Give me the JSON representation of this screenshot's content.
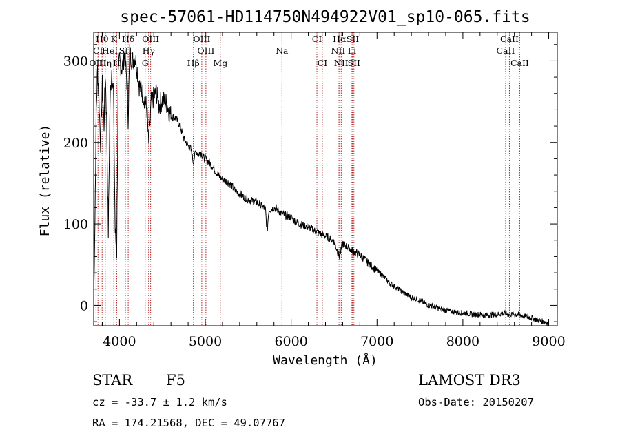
{
  "chart_data": {
    "type": "line",
    "title": "spec-57061-HD114750N494922V01_sp10-065.fits",
    "xlabel": "Wavelength (Å)",
    "ylabel": "Flux (relative)",
    "xlim": [
      3700,
      9100
    ],
    "ylim": [
      -25,
      335
    ],
    "xticks": [
      4000,
      5000,
      6000,
      7000,
      8000,
      9000
    ],
    "yticks": [
      0,
      100,
      200,
      300
    ],
    "series": [
      {
        "name": "flux",
        "points": [
          [
            3700,
            0
          ],
          [
            3715,
            110
          ],
          [
            3730,
            240
          ],
          [
            3745,
            290
          ],
          [
            3760,
            255
          ],
          [
            3780,
            200
          ],
          [
            3800,
            270
          ],
          [
            3820,
            220
          ],
          [
            3835,
            285
          ],
          [
            3850,
            230
          ],
          [
            3870,
            90
          ],
          [
            3890,
            250
          ],
          [
            3910,
            290
          ],
          [
            3930,
            262
          ],
          [
            3950,
            90
          ],
          [
            3968,
            65
          ],
          [
            3985,
            280
          ],
          [
            4000,
            300
          ],
          [
            4030,
            290
          ],
          [
            4060,
            310
          ],
          [
            4090,
            270
          ],
          [
            4101,
            230
          ],
          [
            4120,
            310
          ],
          [
            4150,
            300
          ],
          [
            4180,
            305
          ],
          [
            4200,
            295
          ],
          [
            4230,
            270
          ],
          [
            4260,
            262
          ],
          [
            4290,
            255
          ],
          [
            4320,
            240
          ],
          [
            4340,
            195
          ],
          [
            4370,
            250
          ],
          [
            4400,
            255
          ],
          [
            4430,
            262
          ],
          [
            4460,
            245
          ],
          [
            4500,
            252
          ],
          [
            4550,
            248
          ],
          [
            4600,
            232
          ],
          [
            4650,
            230
          ],
          [
            4700,
            222
          ],
          [
            4750,
            205
          ],
          [
            4800,
            196
          ],
          [
            4830,
            192
          ],
          [
            4861,
            176
          ],
          [
            4890,
            190
          ],
          [
            4920,
            185
          ],
          [
            4950,
            188
          ],
          [
            4980,
            181
          ],
          [
            5000,
            180
          ],
          [
            5050,
            175
          ],
          [
            5100,
            168
          ],
          [
            5150,
            160
          ],
          [
            5172,
            157
          ],
          [
            5200,
            155
          ],
          [
            5250,
            152
          ],
          [
            5300,
            148
          ],
          [
            5350,
            140
          ],
          [
            5400,
            137
          ],
          [
            5450,
            133
          ],
          [
            5500,
            130
          ],
          [
            5550,
            128
          ],
          [
            5600,
            127
          ],
          [
            5650,
            122
          ],
          [
            5700,
            118
          ],
          [
            5720,
            90
          ],
          [
            5740,
            117
          ],
          [
            5800,
            120
          ],
          [
            5850,
            117
          ],
          [
            5893,
            112
          ],
          [
            5950,
            110
          ],
          [
            6000,
            108
          ],
          [
            6050,
            103
          ],
          [
            6100,
            100
          ],
          [
            6150,
            98
          ],
          [
            6200,
            96
          ],
          [
            6250,
            93
          ],
          [
            6300,
            90
          ],
          [
            6350,
            87
          ],
          [
            6400,
            85
          ],
          [
            6450,
            82
          ],
          [
            6500,
            78
          ],
          [
            6563,
            60
          ],
          [
            6600,
            76
          ],
          [
            6650,
            72
          ],
          [
            6700,
            68
          ],
          [
            6750,
            65
          ],
          [
            6800,
            62
          ],
          [
            6850,
            57
          ],
          [
            6900,
            52
          ],
          [
            6950,
            47
          ],
          [
            7000,
            42
          ],
          [
            7050,
            38
          ],
          [
            7100,
            33
          ],
          [
            7150,
            27
          ],
          [
            7200,
            24
          ],
          [
            7250,
            20
          ],
          [
            7300,
            16
          ],
          [
            7350,
            13
          ],
          [
            7400,
            10
          ],
          [
            7450,
            8
          ],
          [
            7500,
            6
          ],
          [
            7550,
            3
          ],
          [
            7600,
            0
          ],
          [
            7650,
            -1
          ],
          [
            7700,
            -3
          ],
          [
            7750,
            -5
          ],
          [
            7800,
            -6
          ],
          [
            7850,
            -7
          ],
          [
            7900,
            -8
          ],
          [
            7950,
            -9
          ],
          [
            8000,
            -9
          ],
          [
            8050,
            -10
          ],
          [
            8100,
            -11
          ],
          [
            8150,
            -11
          ],
          [
            8200,
            -11
          ],
          [
            8250,
            -12
          ],
          [
            8300,
            -12
          ],
          [
            8350,
            -11
          ],
          [
            8400,
            -11
          ],
          [
            8450,
            -10
          ],
          [
            8500,
            -10
          ],
          [
            8542,
            -12
          ],
          [
            8550,
            -11
          ],
          [
            8600,
            -11
          ],
          [
            8662,
            -12
          ],
          [
            8700,
            -13
          ],
          [
            8750,
            -14
          ],
          [
            8800,
            -15
          ],
          [
            8850,
            -17
          ],
          [
            8900,
            -19
          ],
          [
            8950,
            -20
          ],
          [
            9000,
            -22
          ]
        ]
      }
    ],
    "spectral_lines": [
      {
        "label": "Hθ",
        "x": 3798,
        "row": 0
      },
      {
        "label": "K",
        "x": 3934,
        "row": 0
      },
      {
        "label": "Hδ",
        "x": 4102,
        "row": 0
      },
      {
        "label": "OIII",
        "x": 4363,
        "row": 0
      },
      {
        "label": "OIII",
        "x": 4959,
        "row": 0
      },
      {
        "label": "CI",
        "x": 6300,
        "row": 0
      },
      {
        "label": "Hα",
        "x": 6563,
        "row": 0
      },
      {
        "label": "SII",
        "x": 6717,
        "row": 0
      },
      {
        "label": "CaII",
        "x": 8542,
        "row": 0
      },
      {
        "label": "CI",
        "x": 3750,
        "row": 1
      },
      {
        "label": "HeI",
        "x": 3889,
        "row": 1
      },
      {
        "label": "SII",
        "x": 4069,
        "row": 1
      },
      {
        "label": "Hγ",
        "x": 4340,
        "row": 1
      },
      {
        "label": "OIII",
        "x": 5007,
        "row": 1
      },
      {
        "label": "Na",
        "x": 5893,
        "row": 1
      },
      {
        "label": "NII",
        "x": 6548,
        "row": 1
      },
      {
        "label": "Li",
        "x": 6708,
        "row": 1
      },
      {
        "label": "CaII",
        "x": 8498,
        "row": 1
      },
      {
        "label": "OII",
        "x": 3727,
        "row": 2
      },
      {
        "label": "Hη",
        "x": 3835,
        "row": 2
      },
      {
        "label": "H",
        "x": 3968,
        "row": 2
      },
      {
        "label": "G",
        "x": 4300,
        "row": 2
      },
      {
        "label": "Hβ",
        "x": 4861,
        "row": 2
      },
      {
        "label": "Mg",
        "x": 5175,
        "row": 2
      },
      {
        "label": "CI",
        "x": 6363,
        "row": 2
      },
      {
        "label": "NII",
        "x": 6583,
        "row": 2
      },
      {
        "label": "SII",
        "x": 6731,
        "row": 2
      },
      {
        "label": "CaII",
        "x": 8662,
        "row": 2
      }
    ]
  },
  "info": {
    "object_class": "STAR",
    "subclass": "F5",
    "survey": "LAMOST DR3",
    "cz": "cz = -33.7 ± 1.2 km/s",
    "obs_date": "Obs-Date: 20150207",
    "coords": "RA = 174.21568, DEC =  49.07767"
  },
  "colors": {
    "spectrum": "#000000",
    "line_marker": "#b22222"
  }
}
